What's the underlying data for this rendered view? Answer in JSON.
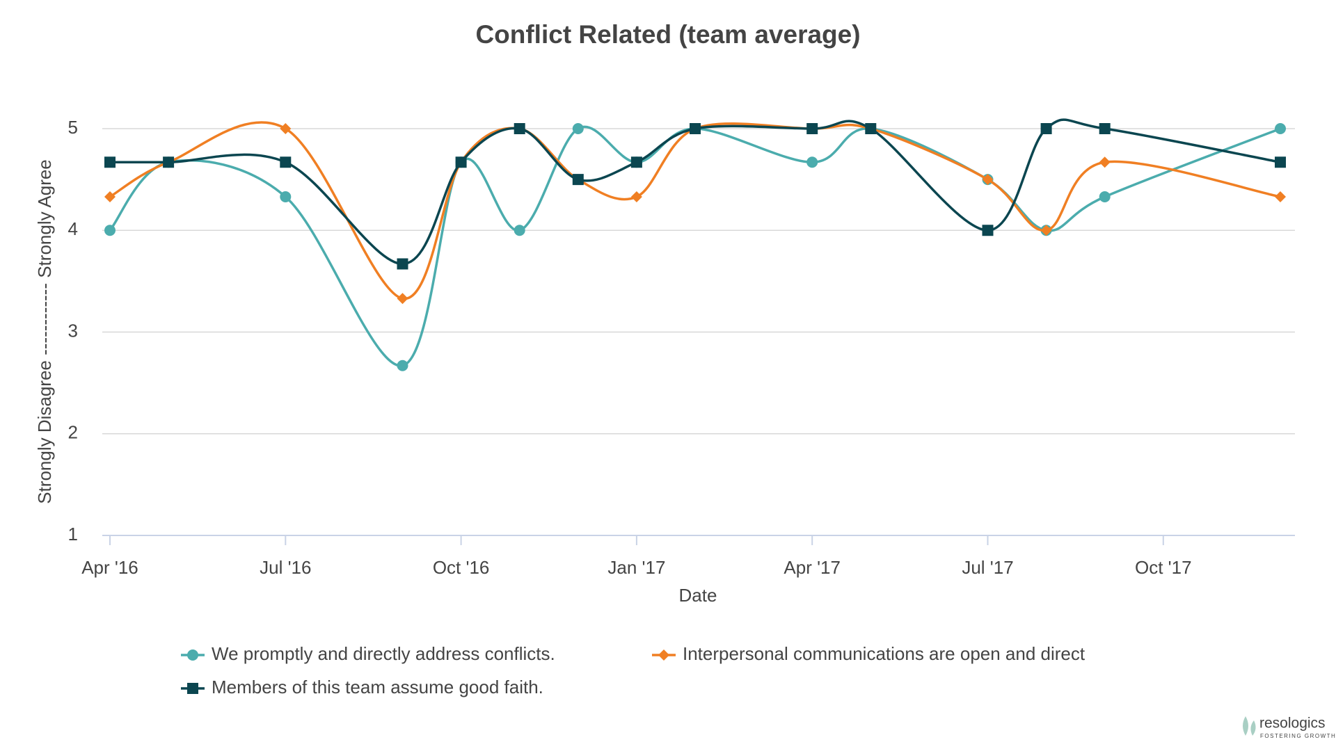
{
  "chart_data": {
    "type": "line",
    "title": "Conflict Related (team average)",
    "x_label": "Date",
    "y_label": "Strongly Disagree ------------ Strongly Agree",
    "x": [
      "2016-04",
      "2016-05",
      "2016-07",
      "2016-09",
      "2016-10",
      "2016-11",
      "2016-12",
      "2017-01",
      "2017-02",
      "2017-04",
      "2017-05",
      "2017-07",
      "2017-08",
      "2017-09",
      "2017-12"
    ],
    "series": [
      {
        "name": "We promptly and directly address conflicts.",
        "color": "#4bacad",
        "marker": "circle",
        "values": [
          4,
          4.67,
          4.33,
          2.67,
          4.67,
          4,
          5,
          4.67,
          5,
          4.67,
          5,
          4.5,
          4,
          4.33,
          5
        ]
      },
      {
        "name": "Interpersonal communications are open and direct",
        "color": "#f07f23",
        "marker": "diamond",
        "values": [
          4.33,
          4.67,
          5,
          3.33,
          4.67,
          5,
          4.5,
          4.33,
          5,
          5,
          5,
          4.5,
          4,
          4.67,
          4.33
        ]
      },
      {
        "name": "Members of this team assume good faith.",
        "color": "#0b4650",
        "marker": "square",
        "values": [
          4.67,
          4.67,
          4.67,
          3.67,
          4.67,
          5,
          4.5,
          4.67,
          5,
          5,
          5,
          4,
          5,
          5,
          4.67
        ]
      }
    ],
    "xlim": [
      "2016-04",
      "2017-12"
    ],
    "xticks": [
      {
        "value": "2016-04",
        "label": "Apr '16"
      },
      {
        "value": "2016-07",
        "label": "Jul '16"
      },
      {
        "value": "2016-10",
        "label": "Oct '16"
      },
      {
        "value": "2017-01",
        "label": "Jan '17"
      },
      {
        "value": "2017-04",
        "label": "Apr '17"
      },
      {
        "value": "2017-07",
        "label": "Jul '17"
      },
      {
        "value": "2017-10",
        "label": "Oct '17"
      }
    ],
    "ylim": [
      1,
      5.33
    ],
    "yticks": [
      1,
      2,
      3,
      4,
      5
    ],
    "grid": true,
    "legend": "bottom",
    "logo": {
      "name": "resologics",
      "tagline": "FOSTERING GROWTH"
    }
  }
}
